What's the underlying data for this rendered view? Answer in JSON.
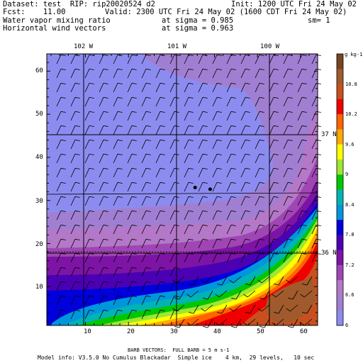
{
  "header": {
    "dataset": "Dataset: test  RIP: rip20020524 d2",
    "init": "Init: 1200 UTC Fri 24 May 02",
    "fcst": "Fcst:    11.00",
    "valid": "Valid: 2300 UTC Fri 24 May 02 (1600 CDT Fri 24 May 02)",
    "field1": "Water vapor mixing ratio",
    "field1_level": "at sigma = 0.985",
    "sm": "sm= 1",
    "field2": "Horizontal wind vectors",
    "field2_level": "at sigma = 0.963"
  },
  "map": {
    "longitudes": [
      "102 W",
      "101 W",
      "100 W"
    ],
    "latitudes": [
      "37 N",
      "36 N"
    ],
    "x_ticks": [
      "10",
      "20",
      "30",
      "40",
      "50",
      "60"
    ],
    "y_ticks": [
      "10",
      "20",
      "30",
      "40",
      "50",
      "60"
    ],
    "x_range": [
      1,
      64
    ],
    "y_range": [
      1,
      64
    ],
    "stations": [
      [
        35.5,
        33
      ],
      [
        39,
        32.6
      ]
    ]
  },
  "colorbar": {
    "unit": "g kg-1",
    "labels": [
      "10.8",
      "10.2",
      "9.6",
      "9",
      "8.4",
      "7.8",
      "7.2",
      "6.6",
      "6"
    ],
    "colors": [
      "#784421",
      "#a05a2c",
      "#c8501e",
      "#f00000",
      "#ff6400",
      "#ffaa00",
      "#ffff00",
      "#a0e632",
      "#00c800",
      "#00b4b4",
      "#0096dc",
      "#0000dc",
      "#4b00b4",
      "#7d14a5",
      "#a046b4",
      "#b478c8",
      "#a07fd2",
      "#8c8cf0"
    ]
  },
  "footer": {
    "barb": "BARB VECTORS:  FULL BARB = 5 m s-1",
    "model": "Model info: V3.5.0 No Cumulus Blackadar  Simple ice    4 km,  29 levels,   10 sec"
  }
}
